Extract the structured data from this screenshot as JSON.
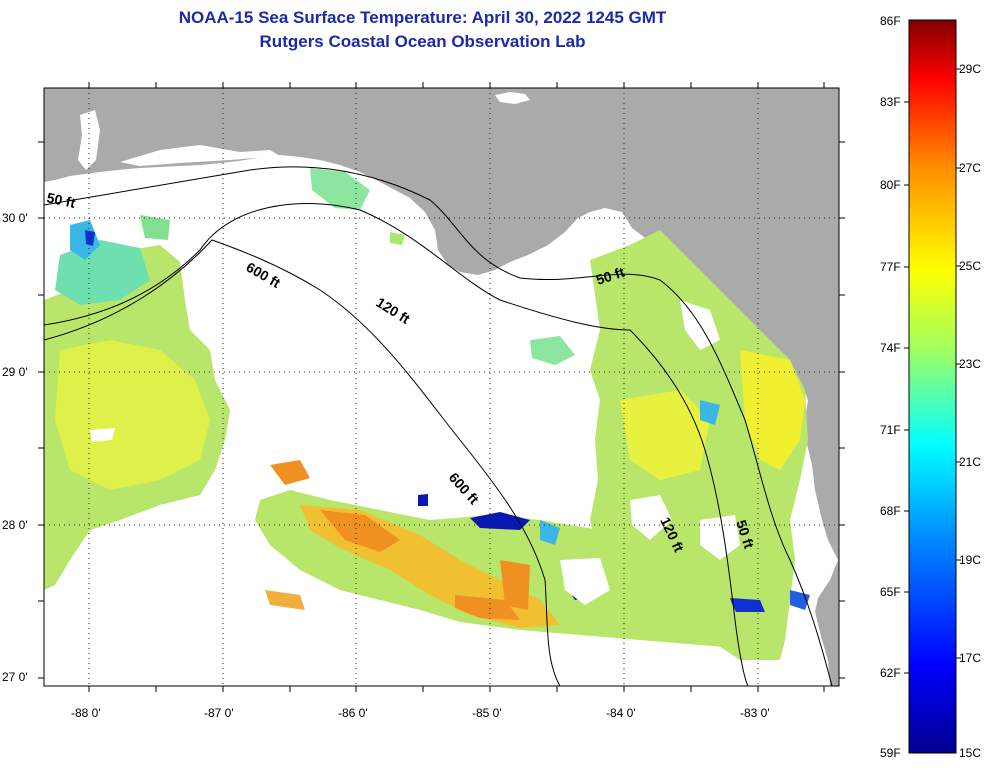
{
  "title": {
    "line1": "NOAA-15 Sea Surface Temperature:  April 30, 2022 1245 GMT",
    "line2": "Rutgers Coastal Ocean Observation Lab"
  },
  "map": {
    "colors": {
      "land": "#aaaaaa",
      "no_data": "#ffffff",
      "grid": "#222222"
    },
    "lat_labels": [
      "30 0'",
      "29 0'",
      "28 0'",
      "27 0'"
    ],
    "lon_labels": [
      "-88 0'",
      "-87 0'",
      "-86 0'",
      "-85 0'",
      "-84 0'",
      "-83 0'"
    ],
    "contour_labels": [
      "50 ft",
      "600 ft",
      "120 ft",
      "50 ft",
      "600 ft",
      "120 ft",
      "50 ft"
    ]
  },
  "colorbar": {
    "stops": [
      "#00008f",
      "#0000ff",
      "#0080ff",
      "#00ffff",
      "#80ff80",
      "#ffff00",
      "#ff8000",
      "#ff0000",
      "#800000"
    ],
    "fahrenheit_labels": [
      "86F",
      "83F",
      "80F",
      "77F",
      "74F",
      "71F",
      "68F",
      "65F",
      "62F",
      "59F"
    ],
    "celsius_labels": [
      "29C",
      "27C",
      "25C",
      "23C",
      "21C",
      "19C",
      "17C",
      "15C"
    ]
  }
}
